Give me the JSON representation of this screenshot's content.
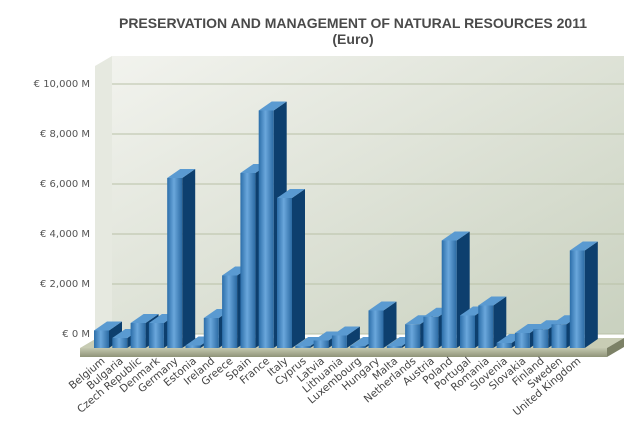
{
  "chart_data": {
    "type": "bar",
    "title": "PRESERVATION AND MANAGEMENT OF NATURAL RESOURCES 2011",
    "subtitle": "(Euro)",
    "ylim": [
      0,
      10000
    ],
    "y_ticks": [
      {
        "value": 0,
        "label": "€ 0 M"
      },
      {
        "value": 2000,
        "label": "€ 2,000 M"
      },
      {
        "value": 4000,
        "label": "€ 4,000 M"
      },
      {
        "value": 6000,
        "label": "€ 6,000 M"
      },
      {
        "value": 8000,
        "label": "€ 8,000 M"
      },
      {
        "value": 10000,
        "label": "€ 10,000 M"
      }
    ],
    "grid": true,
    "categories": [
      "Belgium",
      "Bulgaria",
      "Czech Republic",
      "Denmark",
      "Germany",
      "Estonia",
      "Ireland",
      "Greece",
      "Spain",
      "France",
      "Italy",
      "Cyprus",
      "Latvia",
      "Lithuania",
      "Luxembourg",
      "Hungary",
      "Malta",
      "Netherlands",
      "Austria",
      "Poland",
      "Portugal",
      "Romania",
      "Slovenia",
      "Slovakia",
      "Finland",
      "Sweden",
      "United Kingdom"
    ],
    "values": [
      700,
      400,
      1000,
      1000,
      6800,
      100,
      1200,
      2900,
      7000,
      9500,
      6000,
      50,
      300,
      500,
      80,
      1500,
      30,
      950,
      1250,
      4300,
      1300,
      1700,
      200,
      600,
      750,
      950,
      3900
    ],
    "colors": {
      "bar_front": "#3f83be",
      "bar_side": "#0d3f6e",
      "bar_top": "#5a9ad1",
      "plot_bg": "#dde4d6",
      "floor": "#a9ae95"
    }
  }
}
